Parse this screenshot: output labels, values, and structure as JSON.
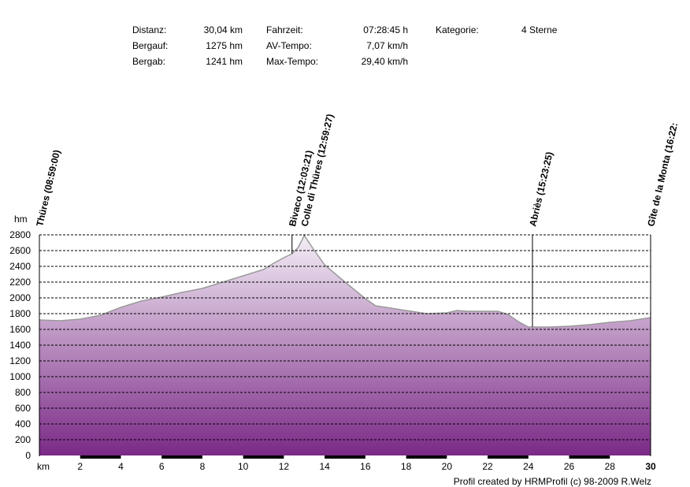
{
  "stats": {
    "distance_label": "Distanz:",
    "distance_value": "30,04 km",
    "climb_label": "Bergauf:",
    "climb_value": "1275 hm",
    "descent_label": "Bergab:",
    "descent_value": "1241 hm",
    "time_label": "Fahrzeit:",
    "time_value": "07:28:45 h",
    "avg_label": "AV-Tempo:",
    "avg_value": "7,07 km/h",
    "max_label": "Max-Tempo:",
    "max_value": "29,40 km/h",
    "category_label": "Kategorie:",
    "category_value": "4 Sterne"
  },
  "credit": "Profil created by HRMProfil (c) 98-2009 R.Welz",
  "colors": {
    "fill_top": "#f4eef6",
    "fill_bottom": "#7a2a86",
    "outline": "#9a9a9a",
    "grid": "#000000",
    "km_band": "#000000"
  },
  "chart_data": {
    "type": "area",
    "ylabel": "hm",
    "xlabel": "km",
    "xlim": [
      0,
      30
    ],
    "ylim": [
      0,
      2800
    ],
    "y_ticks": [
      0,
      200,
      400,
      600,
      800,
      1000,
      1200,
      1400,
      1600,
      1800,
      2000,
      2200,
      2400,
      2600,
      2800
    ],
    "x_ticks": [
      2,
      4,
      6,
      8,
      10,
      12,
      14,
      16,
      18,
      20,
      22,
      24,
      26,
      28,
      30
    ],
    "x_tick_labels": [
      "2",
      "4",
      "6",
      "8",
      "10",
      "12",
      "14",
      "16",
      "18",
      "20",
      "22",
      "24",
      "26",
      "28",
      "30"
    ],
    "grid": "horizontal dashed",
    "profile": {
      "x": [
        0,
        1,
        2,
        3,
        4,
        5,
        6,
        7,
        8,
        9,
        10,
        11,
        11.5,
        12,
        12.4,
        12.7,
        13.0,
        13.5,
        14.0,
        15.0,
        16.0,
        16.5,
        17.0,
        18.0,
        19.0,
        20.0,
        20.5,
        21.0,
        22.0,
        22.5,
        23.0,
        23.5,
        24.0,
        25.0,
        26.0,
        27.0,
        28.0,
        29.0,
        30.0
      ],
      "y": [
        1720,
        1710,
        1730,
        1780,
        1880,
        1960,
        2010,
        2070,
        2120,
        2200,
        2280,
        2360,
        2440,
        2510,
        2560,
        2640,
        2790,
        2600,
        2420,
        2200,
        1990,
        1900,
        1880,
        1840,
        1800,
        1810,
        1840,
        1830,
        1830,
        1830,
        1790,
        1700,
        1630,
        1630,
        1640,
        1660,
        1690,
        1710,
        1750
      ]
    },
    "waypoints": [
      {
        "label": "Thüres (08:59:00)",
        "x": 0,
        "y": 1720
      },
      {
        "label": "Bivaco (12:03:21)",
        "x": 12.4,
        "y": 2560
      },
      {
        "label": "Colle di Thüres (12:59:27)",
        "x": 13.0,
        "y": 2790
      },
      {
        "label": "Abriès (15:23:25)",
        "x": 24.2,
        "y": 1630
      },
      {
        "label": "Gîte de la Monta (16:22:",
        "x": 30.0,
        "y": 1750
      }
    ]
  }
}
